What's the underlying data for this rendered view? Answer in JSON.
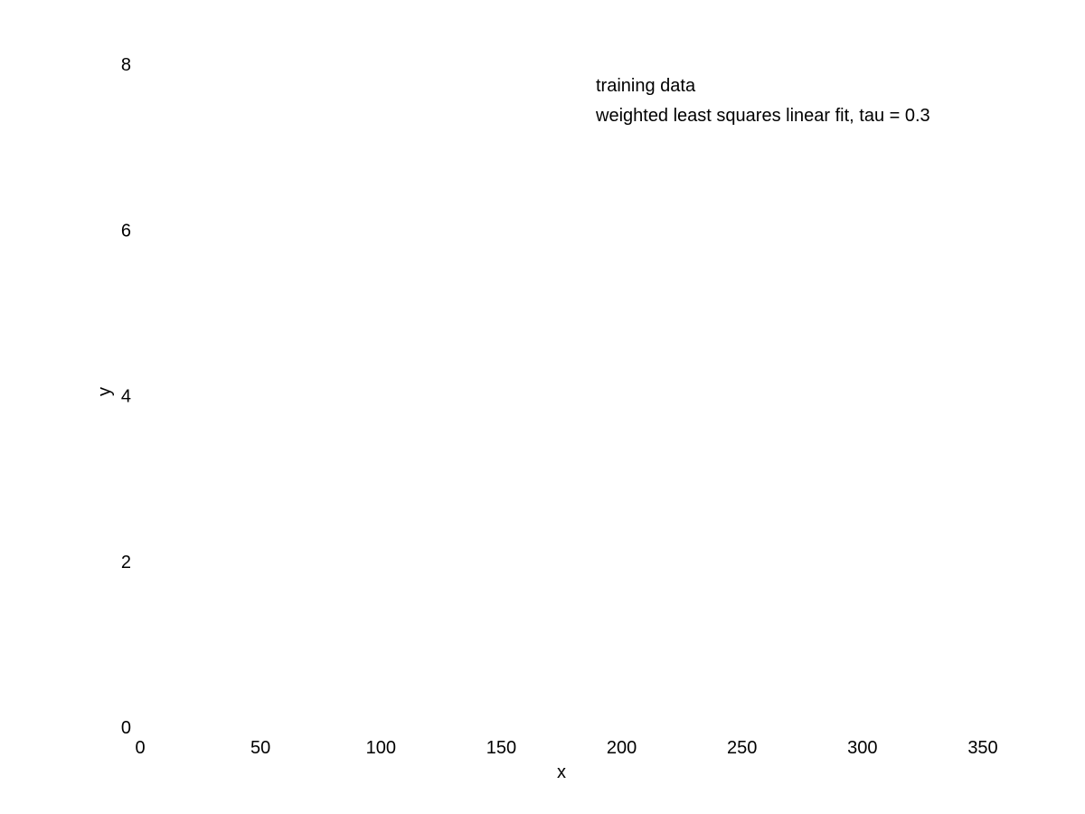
{
  "chart_data": {
    "type": "scatter",
    "title": "",
    "xlabel": "x",
    "ylabel": "y",
    "xlim": [
      0,
      350
    ],
    "ylim": [
      0,
      8
    ],
    "xticks": [
      0,
      50,
      100,
      150,
      200,
      250,
      300,
      350
    ],
    "yticks": [
      0,
      2,
      4,
      6,
      8
    ],
    "xtick_labels": [
      "0",
      "50",
      "100",
      "150",
      "200",
      "250",
      "300",
      "350"
    ],
    "ytick_labels": [
      "0",
      "2",
      "4",
      "6",
      "8"
    ],
    "grid": false,
    "legend_position": "top-right",
    "series": [
      {
        "name": "training data",
        "x": [],
        "y": []
      },
      {
        "name": "weighted least squares linear fit, tau = 0.3",
        "x": [],
        "y": []
      }
    ]
  }
}
